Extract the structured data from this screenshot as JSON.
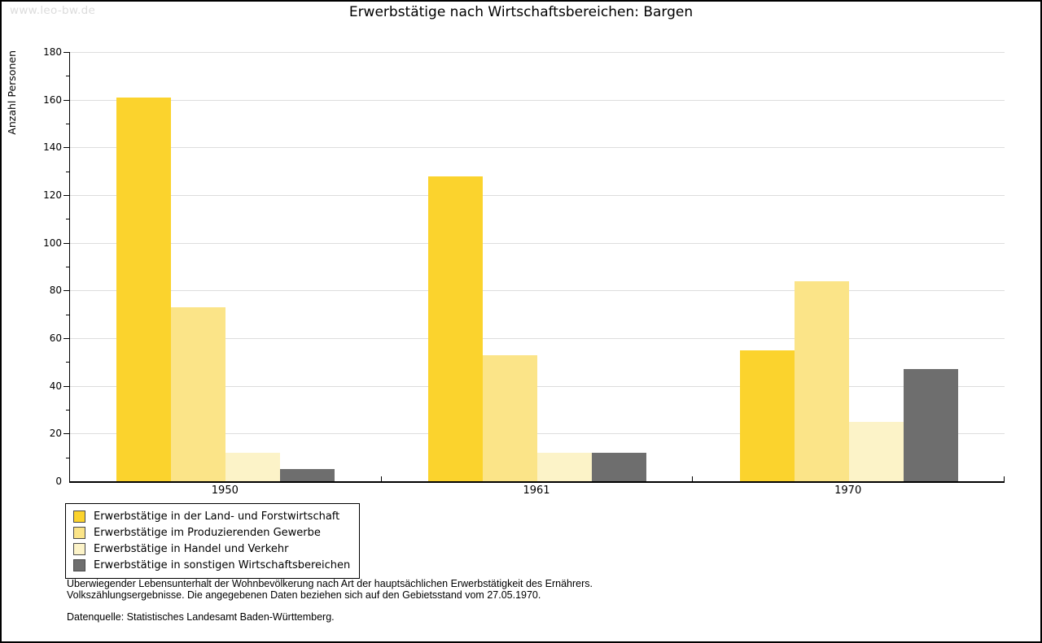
{
  "watermark": "www.leo-bw.de",
  "chart_data": {
    "type": "bar",
    "title": "Erwerbstätige nach Wirtschaftsbereichen: Bargen",
    "xlabel": "",
    "ylabel": "Anzahl Personen",
    "ylim": [
      0,
      180
    ],
    "ytick_step": 20,
    "yminor_step": 10,
    "grid": true,
    "legend_position": "bottom-left",
    "categories": [
      "1950",
      "1961",
      "1970"
    ],
    "series": [
      {
        "name": "Erwerbstätige in der Land- und Forstwirtschaft",
        "color": "#FBD32D",
        "values": [
          161,
          128,
          55
        ]
      },
      {
        "name": "Erwerbstätige im Produzierenden Gewerbe",
        "color": "#FBE488",
        "values": [
          73,
          53,
          84
        ]
      },
      {
        "name": "Erwerbstätige in Handel und Verkehr",
        "color": "#FCF3C8",
        "values": [
          12,
          12,
          25
        ]
      },
      {
        "name": "Erwerbstätige in sonstigen Wirtschaftsbereichen",
        "color": "#6E6E6E",
        "values": [
          5,
          12,
          47
        ]
      }
    ]
  },
  "footer": {
    "note_line1": "Überwiegender Lebensunterhalt der Wohnbevölkerung nach Art der hauptsächlichen Erwerbstätigkeit des Ernährers.",
    "note_line2": "Volkszählungsergebnisse. Die angegebenen Daten beziehen sich auf den Gebietsstand vom 27.05.1970.",
    "source": "Datenquelle: Statistisches Landesamt Baden-Württemberg."
  },
  "colors": {
    "gridline": "#DDDDDD",
    "axis": "#000000",
    "watermark": "#DCDCDC",
    "background": "#FFFFFF",
    "frame_border": "#000000"
  }
}
